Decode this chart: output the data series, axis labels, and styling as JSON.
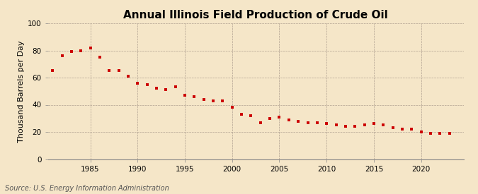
{
  "title": "Annual Illinois Field Production of Crude Oil",
  "ylabel": "Thousand Barrels per Day",
  "source": "Source: U.S. Energy Information Administration",
  "background_color": "#f5e6c8",
  "marker_color": "#cc0000",
  "years": [
    1981,
    1982,
    1983,
    1984,
    1985,
    1986,
    1987,
    1988,
    1989,
    1990,
    1991,
    1992,
    1993,
    1994,
    1995,
    1996,
    1997,
    1998,
    1999,
    2000,
    2001,
    2002,
    2003,
    2004,
    2005,
    2006,
    2007,
    2008,
    2009,
    2010,
    2011,
    2012,
    2013,
    2014,
    2015,
    2016,
    2017,
    2018,
    2019,
    2020,
    2021,
    2022,
    2023
  ],
  "values": [
    65,
    76,
    79,
    80,
    82,
    75,
    65,
    65,
    61,
    56,
    55,
    52,
    51,
    53,
    47,
    46,
    44,
    43,
    43,
    38,
    33,
    32,
    27,
    30,
    31,
    29,
    28,
    27,
    27,
    26,
    25,
    24,
    24,
    25,
    26,
    25,
    23,
    22,
    22,
    20,
    19,
    19,
    19
  ],
  "ylim": [
    0,
    100
  ],
  "xlim": [
    1980.5,
    2024.5
  ],
  "yticks": [
    0,
    20,
    40,
    60,
    80,
    100
  ],
  "xticks": [
    1985,
    1990,
    1995,
    2000,
    2005,
    2010,
    2015,
    2020
  ],
  "title_fontsize": 11,
  "label_fontsize": 8,
  "tick_fontsize": 7.5,
  "source_fontsize": 7,
  "marker_size": 3.5
}
